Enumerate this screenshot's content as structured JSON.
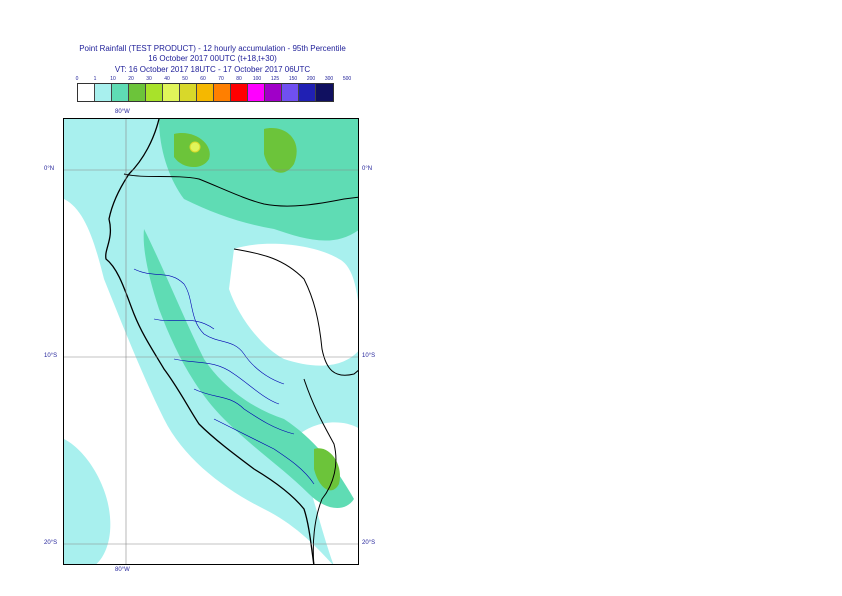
{
  "header": {
    "line1": "Point Rainfall (TEST PRODUCT) - 12 hourly accumulation - 95th Percentile",
    "line2": "16 October 2017 00UTC (t+18,t+30)",
    "line3": "VT: 16 October 2017 18UTC - 17 October 2017 06UTC"
  },
  "legend": {
    "thresholds": [
      "0",
      "1",
      "10",
      "20",
      "30",
      "40",
      "50",
      "60",
      "70",
      "80",
      "100",
      "125",
      "150",
      "200",
      "300",
      "500"
    ],
    "colors": [
      "#ffffff",
      "#a8f0ee",
      "#5fdcb4",
      "#6cc43a",
      "#a8e22a",
      "#e0f55a",
      "#d8d82a",
      "#f5b800",
      "#ff7f00",
      "#ff0000",
      "#ff00ff",
      "#a000c8",
      "#7050f0",
      "#2020b4",
      "#101060"
    ]
  },
  "axes": {
    "lon_top": "80°W",
    "lon_bottom": "80°W",
    "lat_labels": [
      {
        "text": "0°N",
        "lat": 0
      },
      {
        "text": "10°S",
        "lat": -10
      },
      {
        "text": "20°S",
        "lat": -20
      }
    ]
  }
}
